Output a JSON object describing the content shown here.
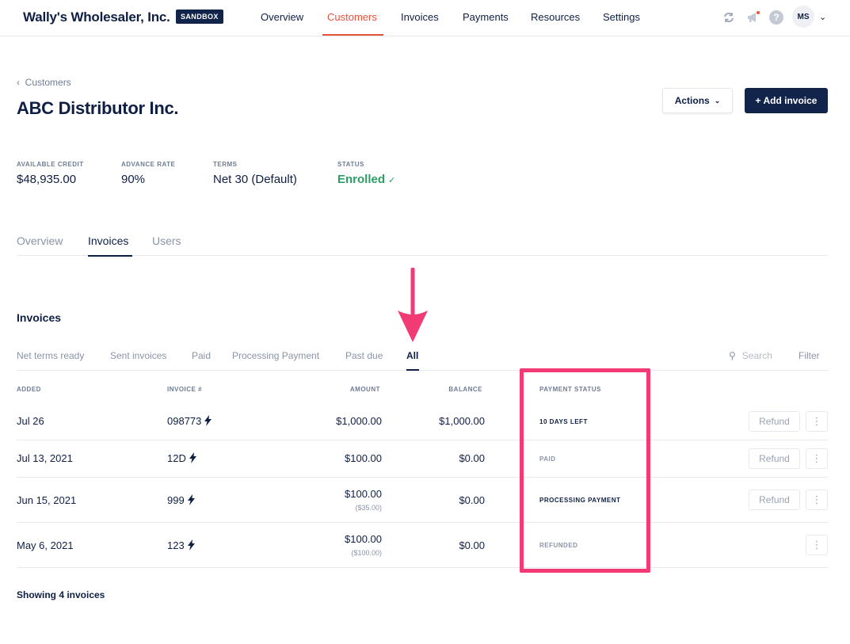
{
  "app": {
    "company": "Wally's Wholesaler, Inc.",
    "env_badge": "SANDBOX",
    "nav": [
      "Overview",
      "Customers",
      "Invoices",
      "Payments",
      "Resources",
      "Settings"
    ],
    "active_nav": "Customers",
    "user_initials": "MS",
    "colors": {
      "brand_navy": "#13244b",
      "accent": "#e8523a",
      "enrolled_green": "#2c9e63",
      "annotation_pink": "#f23a75"
    },
    "icons": [
      "sync-icon",
      "megaphone-icon",
      "help-icon",
      "chevron-down-icon"
    ]
  },
  "header": {
    "breadcrumb": "Customers",
    "title": "ABC Distributor Inc.",
    "actions_label": "Actions",
    "add_invoice_label": "+ Add invoice"
  },
  "stats": [
    {
      "label": "AVAILABLE CREDIT",
      "value": "$48,935.00"
    },
    {
      "label": "ADVANCE RATE",
      "value": "90%"
    },
    {
      "label": "TERMS",
      "value": "Net 30 (Default)"
    },
    {
      "label": "STATUS",
      "value": "Enrolled"
    }
  ],
  "tabs": [
    "Overview",
    "Invoices",
    "Users"
  ],
  "active_tab": "Invoices",
  "invoices": {
    "title": "Invoices",
    "filters": [
      "Net terms ready",
      "Sent invoices",
      "Paid",
      "Processing Payment",
      "Past due",
      "All"
    ],
    "active_filter": "All",
    "search_placeholder": "Search",
    "filter_label": "Filter",
    "columns": [
      "ADDED",
      "INVOICE #",
      "AMOUNT",
      "BALANCE",
      "PAYMENT STATUS"
    ],
    "rows": [
      {
        "added": "Jul 26",
        "invoice": "098773",
        "amount": "$1,000.00",
        "amount_sub": "",
        "balance": "$1,000.00",
        "status": "10 DAYS LEFT",
        "refund": "Refund"
      },
      {
        "added": "Jul 13, 2021",
        "invoice": "12D",
        "amount": "$100.00",
        "amount_sub": "",
        "balance": "$0.00",
        "status": "PAID",
        "refund": "Refund"
      },
      {
        "added": "Jun 15, 2021",
        "invoice": "999",
        "amount": "$100.00",
        "amount_sub": "($35.00)",
        "balance": "$0.00",
        "status": "PROCESSING PAYMENT",
        "refund": "Refund"
      },
      {
        "added": "May 6, 2021",
        "invoice": "123",
        "amount": "$100.00",
        "amount_sub": "($100.00)",
        "balance": "$0.00",
        "status": "REFUNDED",
        "refund": ""
      }
    ],
    "footer": "Showing 4 invoices"
  }
}
